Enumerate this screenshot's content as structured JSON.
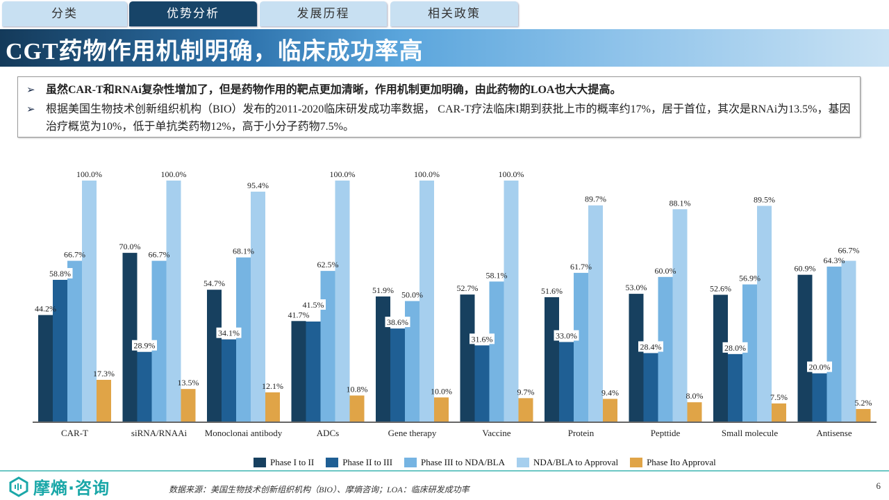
{
  "tabs": [
    {
      "label": "分类",
      "active": false
    },
    {
      "label": "优势分析",
      "active": true
    },
    {
      "label": "发展历程",
      "active": false
    },
    {
      "label": "相关政策",
      "active": false
    }
  ],
  "title": "CGT药物作用机制明确，临床成功率高",
  "bullets": [
    "虽然CAR-T和RNAi复杂性增加了，但是药物作用的靶点更加清晰，作用机制更加明确，由此药物的LOA也大大提高。",
    "根据美国生物技术创新组织机构（BIO）发布的2011-2020临床研发成功率数据， CAR-T疗法临床I期到获批上市的概率约17%，居于首位，其次是RNAi为13.5%，基因治疗概览为10%，低于单抗类药物12%，高于小分子药物7.5%。"
  ],
  "bullet_icon": "arrow-right-icon",
  "chart_data": {
    "type": "bar",
    "title": "",
    "xlabel": "",
    "ylabel": "",
    "ylim": [
      0,
      100
    ],
    "grid": false,
    "legend_position": "bottom",
    "categories": [
      "CAR-T",
      "siRNA/RNAAi",
      "Monoclonai antibody",
      "ADCs",
      "Gene therapy",
      "Vaccine",
      "Protein",
      "Pepttide",
      "Small molecule",
      "Antisense"
    ],
    "series": [
      {
        "name": "Phase I to II",
        "color": "#17405f",
        "values": [
          44.2,
          70.0,
          54.7,
          41.7,
          51.9,
          52.7,
          51.6,
          53.0,
          52.6,
          60.9
        ],
        "labels": [
          "44.2%",
          "70.0%",
          "54.7%",
          "41.7%",
          "51.9%",
          "52.7%",
          "51.6%",
          "53.0%",
          "52.6%",
          "60.9%"
        ]
      },
      {
        "name": "Phase II to III",
        "color": "#1f5f94",
        "values": [
          58.8,
          28.9,
          34.1,
          41.5,
          38.6,
          31.6,
          33.0,
          28.4,
          28.0,
          20.0
        ],
        "labels": [
          "58.8%",
          "28.9%",
          "34.1%",
          "41.5%",
          "38.6%",
          "31.6%",
          "33.0%",
          "28.4%",
          "28.0%",
          "20.0%"
        ]
      },
      {
        "name": "Phase III to NDA/BLA",
        "color": "#76b4e2",
        "values": [
          66.7,
          66.7,
          68.1,
          62.5,
          50.0,
          58.1,
          61.7,
          60.0,
          56.9,
          64.3
        ],
        "labels": [
          "66.7%",
          "66.7%",
          "68.1%",
          "62.5%",
          "50.0%",
          "58.1%",
          "61.7%",
          "60.0%",
          "56.9%",
          "64.3%"
        ]
      },
      {
        "name": "NDA/BLA to Approval",
        "color": "#a6cfee",
        "values": [
          100.0,
          100.0,
          95.4,
          100.0,
          100.0,
          100.0,
          89.7,
          88.1,
          89.5,
          66.7
        ],
        "labels": [
          "100.0%",
          "100.0%",
          "95.4%",
          "100.0%",
          "100.0%",
          "100.0%",
          "89.7%",
          "88.1%",
          "89.5%",
          "66.7%"
        ]
      },
      {
        "name": "Phase Ito Approval",
        "color": "#e0a447",
        "values": [
          17.3,
          13.5,
          12.1,
          10.8,
          10.0,
          9.7,
          9.4,
          8.0,
          7.5,
          5.2
        ],
        "labels": [
          "17.3%",
          "13.5%",
          "12.1%",
          "10.8%",
          "10.0%",
          "9.7%",
          "9.4%",
          "8.0%",
          "7.5%",
          "5.2%"
        ]
      }
    ]
  },
  "footer": {
    "logo_text": "摩熵·咨询",
    "source": "数据来源：美国生物技术创新组织机构（BIO）、摩熵咨询；LOA：临床研发成功率",
    "page": "6"
  }
}
